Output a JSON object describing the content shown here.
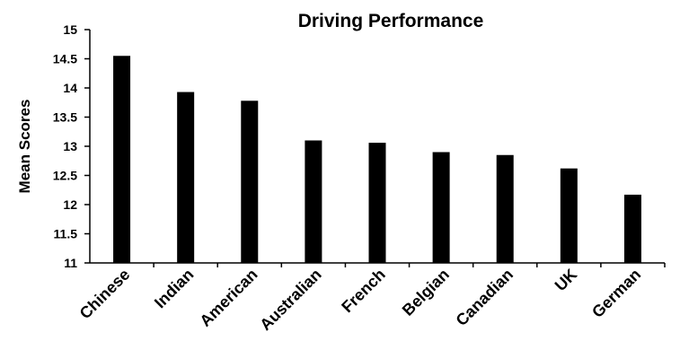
{
  "chart_data": {
    "type": "bar",
    "title": "Driving Performance",
    "ylabel": "Mean Scores",
    "xlabel": "",
    "categories": [
      "Chinese",
      "Indian",
      "American",
      "Australian",
      "French",
      "Belgian",
      "Canadian",
      "UK",
      "German"
    ],
    "values": [
      14.55,
      13.93,
      13.78,
      13.1,
      13.06,
      12.9,
      12.85,
      12.62,
      12.17
    ],
    "ylim": [
      11,
      15
    ],
    "yticks": [
      "11",
      "11.5",
      "12",
      "12.5",
      "13",
      "13.5",
      "14",
      "14.5",
      "15"
    ],
    "grid": false,
    "legend": "none",
    "bar_color": "#000000"
  }
}
